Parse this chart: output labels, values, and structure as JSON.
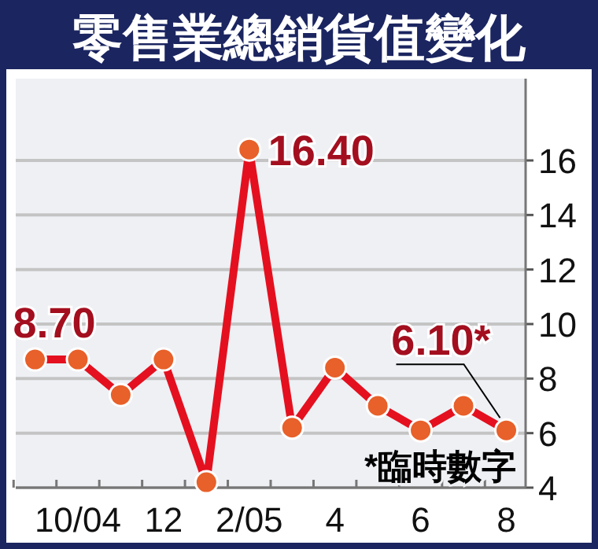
{
  "chart_data": {
    "type": "line",
    "title": "零售業總銷貨值變化",
    "categories": [
      null,
      "10/04",
      null,
      "12",
      null,
      "2/05",
      null,
      "4",
      null,
      "6",
      null,
      "8"
    ],
    "series": [
      {
        "color": "#e4101f",
        "values": [
          8.7,
          8.7,
          7.4,
          8.7,
          4.2,
          16.4,
          6.2,
          8.4,
          7.0,
          6.1,
          7.0,
          6.1
        ],
        "value_labels": [
          "8.70",
          null,
          null,
          null,
          null,
          "16.40",
          null,
          null,
          null,
          null,
          null,
          "6.10*"
        ]
      }
    ],
    "ylim": [
      4,
      19
    ],
    "yticks": [
      4,
      6,
      8,
      10,
      12,
      14,
      16
    ],
    "grid": "y",
    "marker": "circle",
    "line_style": "solid",
    "annotations": [
      "*臨時數字"
    ]
  }
}
